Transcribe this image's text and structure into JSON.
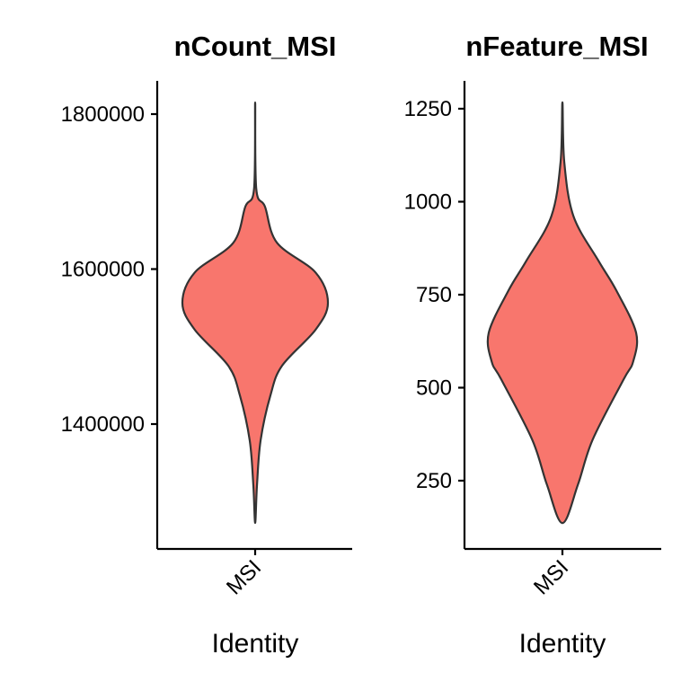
{
  "chart_data": [
    {
      "type": "violin",
      "title": "nCount_MSI",
      "xlabel": "Identity",
      "ylabel": "",
      "categories": [
        "MSI"
      ],
      "yticks": [
        1400000,
        1600000,
        1800000
      ],
      "ytick_labels": [
        "1400000",
        "1600000",
        "1800000"
      ],
      "ylim": [
        1240000,
        1840000
      ],
      "fill": "#F8766D",
      "outline": "#333333",
      "min": 1272500,
      "max": 1815000,
      "density_profile": [
        [
          1272500,
          0
        ],
        [
          1321000,
          0.025
        ],
        [
          1379000,
          0.075
        ],
        [
          1437000,
          0.21
        ],
        [
          1475300,
          0.37
        ],
        [
          1521700,
          0.83
        ],
        [
          1556500,
          1.0
        ],
        [
          1595600,
          0.83
        ],
        [
          1634000,
          0.3
        ],
        [
          1680600,
          0.135
        ],
        [
          1703770,
          0.015
        ],
        [
          1815000,
          0
        ]
      ]
    },
    {
      "type": "violin",
      "title": "nFeature_MSI",
      "xlabel": "Identity",
      "ylabel": "",
      "categories": [
        "MSI"
      ],
      "yticks": [
        250,
        500,
        750,
        1000,
        1250
      ],
      "ytick_labels": [
        "250",
        "500",
        "750",
        "1000",
        "1250"
      ],
      "ylim": [
        60,
        1320
      ],
      "fill": "#F8766D",
      "outline": "#333333",
      "min": 136,
      "max": 1267,
      "density_profile": [
        [
          136,
          0
        ],
        [
          239,
          0.21
        ],
        [
          360,
          0.41
        ],
        [
          522,
          0.83
        ],
        [
          570,
          0.96
        ],
        [
          648,
          1.0
        ],
        [
          762,
          0.73
        ],
        [
          841,
          0.49
        ],
        [
          961,
          0.15
        ],
        [
          1107,
          0.025
        ],
        [
          1267,
          0
        ]
      ]
    }
  ]
}
